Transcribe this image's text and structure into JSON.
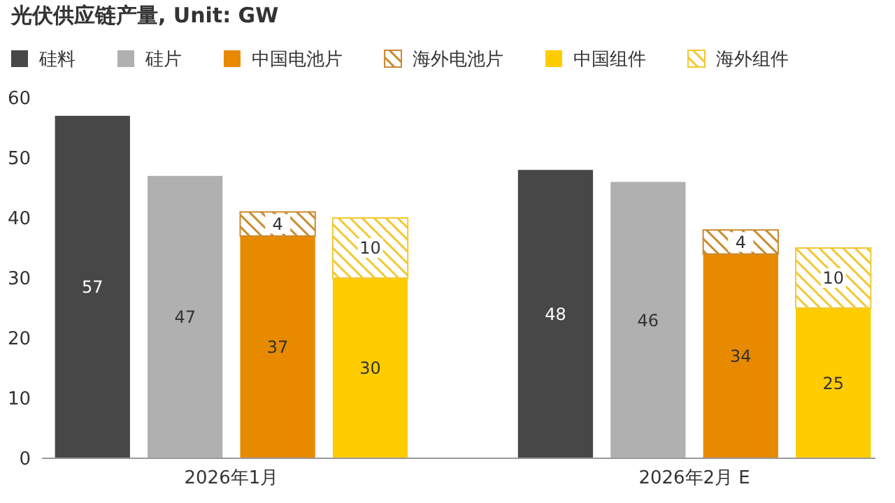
{
  "chart_data": {
    "type": "bar",
    "title": "光伏供应链产量, Unit: GW",
    "categories": [
      null,
      null,
      null,
      null,
      null,
      null,
      null,
      null,
      null
    ],
    "stacked": true,
    "ylim": [
      0,
      60
    ],
    "yticks": [
      0,
      10,
      20,
      30,
      40,
      50,
      60
    ],
    "legend": "top left",
    "data_labels": true,
    "annotations": [
      "2026年1月",
      "2026年2月 E"
    ],
    "series": [
      {
        "name": "硅料",
        "color": "#474747",
        "values": [
          57,
          null,
          null,
          null,
          null,
          48,
          null,
          null,
          null
        ]
      },
      {
        "name": "硅片",
        "color": "#b0b0b0",
        "values": [
          null,
          47,
          null,
          null,
          null,
          null,
          46,
          null,
          null
        ]
      },
      {
        "name": "中国电池片",
        "color": "#e88a00",
        "values": [
          null,
          null,
          37,
          null,
          null,
          null,
          null,
          34,
          null
        ]
      },
      {
        "name": "海外电池片",
        "color": "#c98a2e",
        "values": [
          null,
          null,
          4,
          null,
          null,
          null,
          null,
          4,
          null
        ]
      },
      {
        "name": "中国组件",
        "color": "#ffcc00",
        "values": [
          null,
          null,
          null,
          30,
          null,
          null,
          null,
          null,
          25
        ]
      },
      {
        "name": "海外组件",
        "color": "#f2c830",
        "values": [
          null,
          null,
          null,
          10,
          null,
          null,
          null,
          null,
          10
        ]
      }
    ]
  }
}
